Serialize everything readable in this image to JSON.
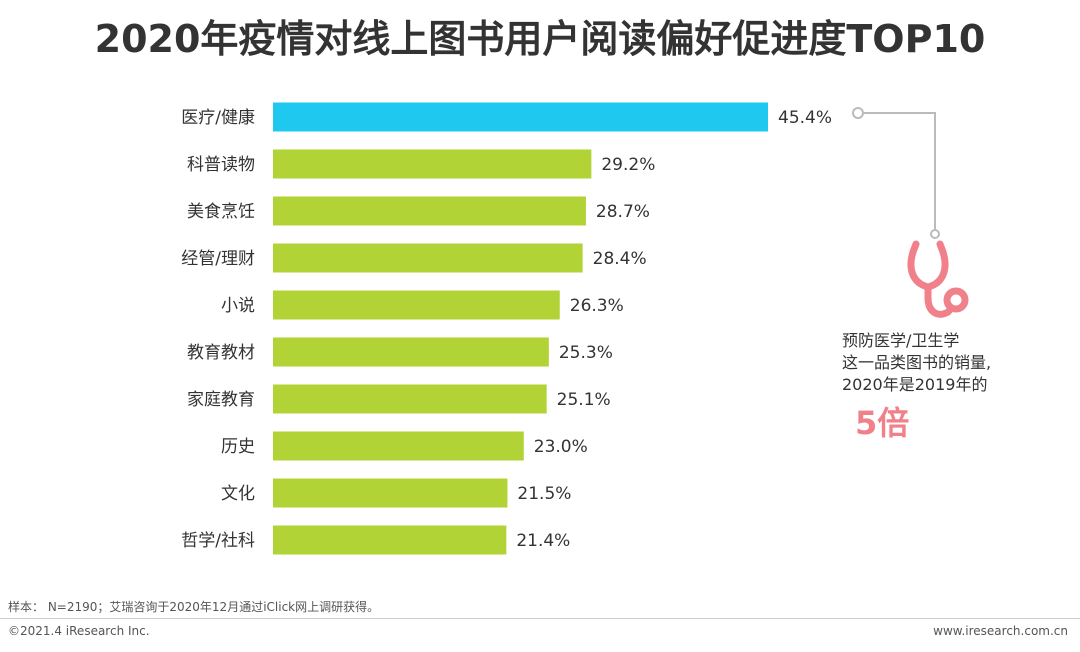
{
  "title": "2020年疫情对线上图书用户阅读偏好促进度TOP10",
  "chart_data": {
    "type": "bar",
    "orientation": "horizontal",
    "title": "2020年疫情对线上图书用户阅读偏好促进度TOP10",
    "categories": [
      "医疗/健康",
      "科普读物",
      "美食烹饪",
      "经管/理财",
      "小说",
      "教育教材",
      "家庭教育",
      "历史",
      "文化",
      "哲学/社科"
    ],
    "values": [
      45.4,
      29.2,
      28.7,
      28.4,
      26.3,
      25.3,
      25.1,
      23.0,
      21.5,
      21.4
    ],
    "value_labels": [
      "45.4%",
      "29.2%",
      "28.7%",
      "28.4%",
      "26.3%",
      "25.3%",
      "25.1%",
      "23.0%",
      "21.5%",
      "21.4%"
    ],
    "unit": "%",
    "xlim": [
      0,
      45.4
    ],
    "highlight_index": 0,
    "colors": {
      "highlight": "#1EC8EE",
      "default": "#B1D335"
    }
  },
  "annotation": {
    "icon": "stethoscope-icon",
    "icon_color": "#F0808A",
    "lines": [
      "预防医学/卫生学",
      "这一品类图书的销量,",
      "2020年是2019年的"
    ],
    "emphasis": "5倍"
  },
  "footer": {
    "sample": "样本： N=2190；艾瑞咨询于2020年12月通过iClick网上调研获得。",
    "copyright": "©2021.4 iResearch Inc.",
    "website": "www.iresearch.com.cn"
  }
}
